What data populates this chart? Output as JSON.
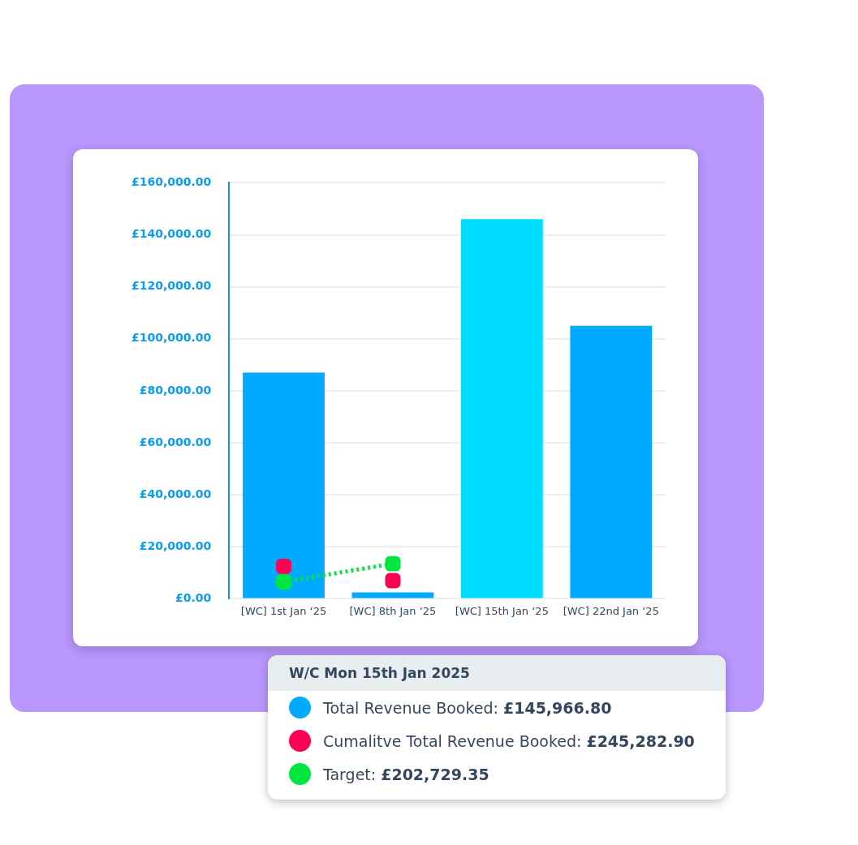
{
  "chart_data": {
    "type": "bar",
    "categories": [
      "[WC] 1st Jan ‘25",
      "[WC] 8th Jan ‘25",
      "[WC] 15th Jan ‘25",
      "[WC] 22nd Jan ‘25"
    ],
    "series": [
      {
        "name": "Total Revenue Booked:",
        "color": "#00aaff",
        "colors": [
          "#00aaff",
          "#00aaff",
          "#00ddff",
          "#00aaff"
        ],
        "values": [
          87000,
          2500,
          146000,
          105000
        ]
      },
      {
        "name": "Cumalitve Total Revenue Booked:",
        "type": "scatter",
        "color": "#ff0055",
        "values": [
          12500,
          7000,
          null,
          null
        ]
      },
      {
        "name": "Target:",
        "type": "line",
        "color": "#00e640",
        "line_style": "dotted",
        "values": [
          6500,
          13500,
          null,
          null
        ]
      }
    ],
    "marker": "square",
    "ylim": [
      0,
      160000
    ],
    "yticks": [
      {
        "value": 0,
        "label": "£0.00"
      },
      {
        "value": 20000,
        "label": "£20,000.00"
      },
      {
        "value": 40000,
        "label": "£40,000.00"
      },
      {
        "value": 60000,
        "label": "£60,000.00"
      },
      {
        "value": 80000,
        "label": "£80,000.00"
      },
      {
        "value": 100000,
        "label": "£100,000.00"
      },
      {
        "value": 120000,
        "label": "£120,000.00"
      },
      {
        "value": 140000,
        "label": "£140,000.00"
      },
      {
        "value": 160000,
        "label": "£160,000.00"
      }
    ],
    "grid": "y",
    "legend": "bottom",
    "annotations": [
      "W/C Mon 15th Jan 2025",
      "£145,966.80",
      "£245,282.90",
      "£202,729.35"
    ]
  }
}
